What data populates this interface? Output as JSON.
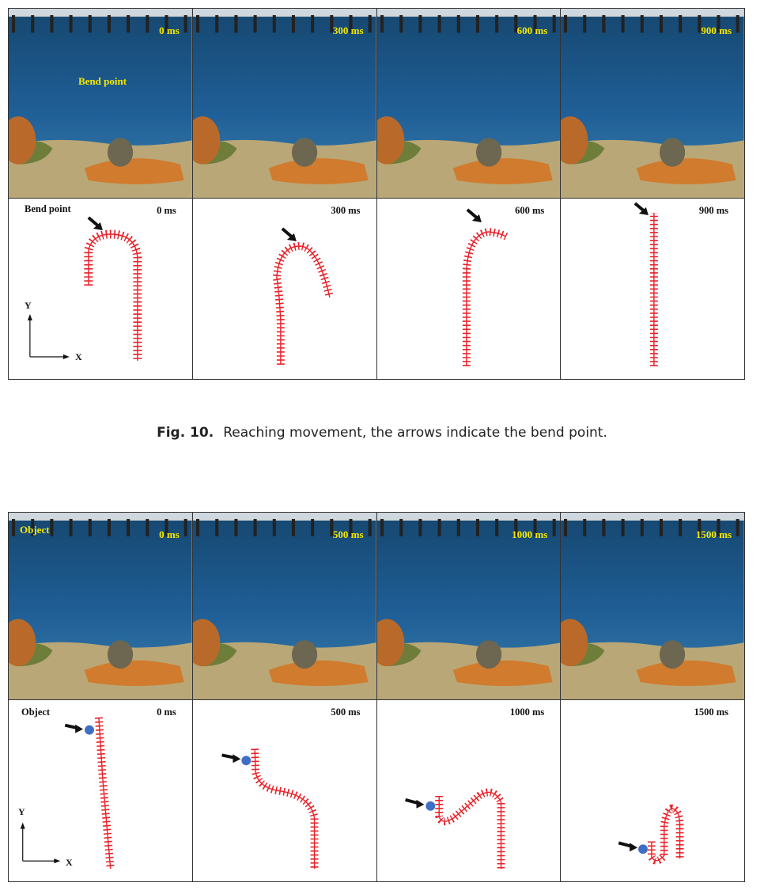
{
  "figure10": {
    "photo_times": [
      "0 ms",
      "300 ms",
      "600 ms",
      "900 ms"
    ],
    "photo_label": "Bend point",
    "diagram_times": [
      "0 ms",
      "300 ms",
      "600 ms",
      "900 ms"
    ],
    "diagram_label": "Bend point",
    "axis_x": "X",
    "axis_y": "Y"
  },
  "caption": {
    "number": "Fig. 10.",
    "text": "Reaching movement, the arrows indicate the bend point."
  },
  "figure11": {
    "photo_times": [
      "0 ms",
      "500 ms",
      "1000 ms",
      "1500 ms"
    ],
    "photo_label": "Object",
    "diagram_times": [
      "0 ms",
      "500 ms",
      "1000 ms",
      "1500 ms"
    ],
    "diagram_label": "Object",
    "axis_x": "X",
    "axis_y": "Y"
  },
  "colors": {
    "tank_blue": "#1f5f97",
    "arm_red": "#e8222a",
    "time_yellow": "#f3e600",
    "object_blue": "#3f6fc4",
    "gravel": "#b9a777"
  }
}
